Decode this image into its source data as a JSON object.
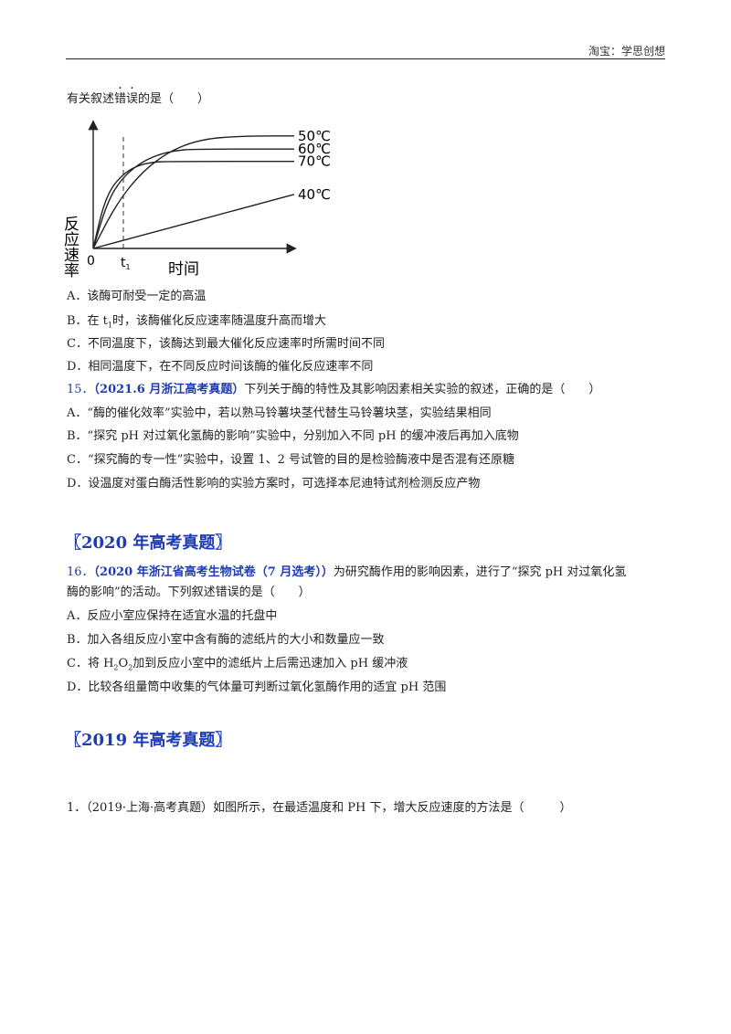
{
  "header": {
    "source": "淘宝：学思创想"
  },
  "q14": {
    "stem_pre": "有关叙述",
    "stem_dot1": "错",
    "stem_dot2": "误",
    "stem_post": "的是（　　）",
    "options": {
      "a": "A．该酶可耐受一定的高温",
      "b_pre": "B．在 t",
      "b_sub": "1",
      "b_post": "时，该酶催化反应速率随温度升高而增大",
      "c": "C．不同温度下，该酶达到最大催化反应速率时所需时间不同",
      "d": "D．相同温度下，在不同反应时间该酶的催化反应速率不同"
    }
  },
  "chart_data": {
    "type": "line",
    "ylabel": "反应速率",
    "xlabel": "时间",
    "origin_label": "0",
    "t1_label": "t",
    "t1_sub": "1",
    "series": [
      {
        "name": "50℃",
        "x": [
          0,
          0.5,
          1,
          1.5,
          2,
          2.5,
          3,
          3.6,
          4.4
        ],
        "y": [
          0,
          1.5,
          2.5,
          3.15,
          3.55,
          3.75,
          3.82,
          3.85,
          3.85
        ]
      },
      {
        "name": "60℃",
        "x": [
          0,
          0.3,
          0.6,
          1,
          1.4,
          1.8,
          2.2,
          4.4
        ],
        "y": [
          0,
          1.55,
          2.35,
          2.9,
          3.2,
          3.35,
          3.4,
          3.4
        ]
      },
      {
        "name": "70℃",
        "x": [
          0,
          0.2,
          0.4,
          0.7,
          1,
          1.3,
          1.6,
          4.4
        ],
        "y": [
          0,
          1.35,
          2.1,
          2.6,
          2.85,
          2.95,
          2.98,
          2.98
        ]
      },
      {
        "name": "40℃",
        "x": [
          0,
          4.4
        ],
        "y": [
          0,
          1.85
        ]
      }
    ]
  },
  "q15": {
    "num": "15．",
    "source": "（2021.6 月浙江高考真题）",
    "stem": "下列关于酶的特性及其影响因素相关实验的叙述，正确的是（　　）",
    "options": {
      "a": "A．“酶的催化效率”实验中，若以熟马铃薯块茎代替生马铃薯块茎，实验结果相同",
      "b": "B．“探究 pH 对过氧化氢酶的影响”实验中，分别加入不同 pH 的缓冲液后再加入底物",
      "c": "C．“探究酶的专一性”实验中，设置 1、2 号试管的目的是检验酶液中是否混有还原糖",
      "d": "D．设温度对蛋白酶活性影响的实验方案时，可选择本尼迪特试剂检测反应产物"
    }
  },
  "section2020": {
    "title": "〖2020 年高考真题〗"
  },
  "q16": {
    "num": "16．",
    "source": "（2020 年浙江省高考生物试卷（7 月选考））",
    "stem1": "为研究酶作用的影响因素，进行了“探究 pH 对过氧化氢",
    "stem2": "酶的影响”的活动。下列叙述错误的是（　　）",
    "options": {
      "a": "A．反应小室应保持在适宜水温的托盘中",
      "b": "B．加入各组反应小室中含有酶的滤纸片的大小和数量应一致",
      "c_pre": "C．将 H",
      "c_sub1": "2",
      "c_mid": "O",
      "c_sub2": "2",
      "c_post": "加到反应小室中的滤纸片上后需迅速加入 pH 缓冲液",
      "d": "D．比较各组量筒中收集的气体量可判断过氧化氢酶作用的适宜 pH 范围"
    }
  },
  "section2019": {
    "title": "〖2019 年高考真题〗"
  },
  "q1": {
    "num": "1．",
    "text": "（2019·上海·高考真题）如图所示，在最适温度和  PH  下，增大反应速度的方法是（　　　）"
  }
}
